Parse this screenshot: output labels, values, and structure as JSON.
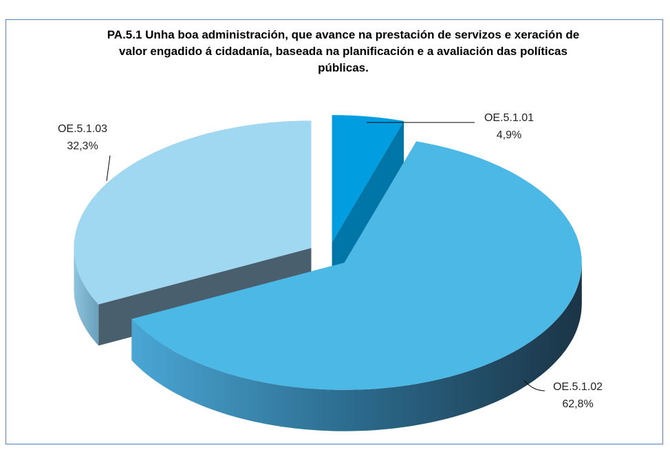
{
  "chart_data": {
    "type": "pie",
    "title": "PA.5.1 Unha boa administración, que avance na prestación de servizos e xeración de valor engadido á cidadanía, baseada na planificación e a avaliación das políticas públicas.",
    "categories": [
      "OE.5.1.01",
      "OE.5.1.02",
      "OE.5.1.03"
    ],
    "values": [
      4.9,
      62.8,
      32.3
    ],
    "value_labels": [
      "4,9%",
      "62,8%",
      "32,3%"
    ],
    "colors": [
      "#009ee0",
      "#4cb8e6",
      "#a0d7f1"
    ],
    "side_colors": [
      "#0075a8",
      "#2a6f92",
      "#4a5f6e"
    ]
  }
}
